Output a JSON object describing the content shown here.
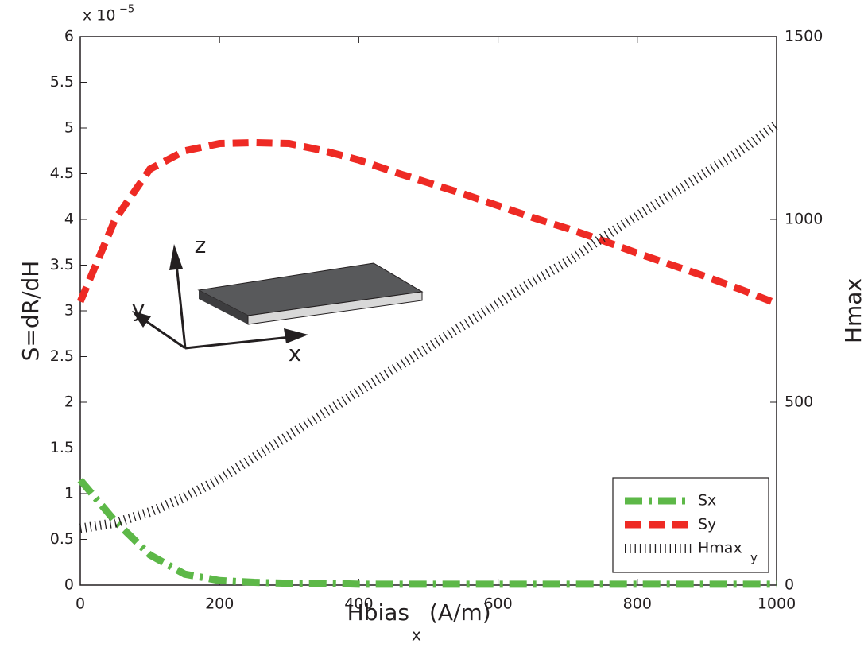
{
  "chart_data": {
    "type": "line",
    "xlabel": {
      "main": "Hbias",
      "subscript": "x",
      "unit": "(A/m)"
    },
    "ylabel": "S=dR/dH",
    "y2label": "Hmax",
    "y_multiplier": {
      "base": "x 10",
      "exponent": "−5"
    },
    "x": [
      0,
      50,
      100,
      150,
      200,
      250,
      300,
      350,
      400,
      450,
      500,
      550,
      600,
      650,
      700,
      750,
      800,
      850,
      900,
      950,
      1000
    ],
    "series": [
      {
        "name": "Sx",
        "color": "#5db848",
        "style": "dashdot",
        "axis": "y",
        "values": [
          1.15,
          0.7,
          0.33,
          0.12,
          0.05,
          0.03,
          0.02,
          0.02,
          0.01,
          0.01,
          0.01,
          0.01,
          0.01,
          0.01,
          0.01,
          0.01,
          0.01,
          0.01,
          0.01,
          0.01,
          0.01
        ]
      },
      {
        "name": "Sy",
        "color": "#ee2a24",
        "style": "dashed",
        "axis": "y",
        "values": [
          3.1,
          4.0,
          4.55,
          4.75,
          4.83,
          4.84,
          4.83,
          4.75,
          4.65,
          4.52,
          4.4,
          4.28,
          4.15,
          4.02,
          3.9,
          3.77,
          3.63,
          3.5,
          3.37,
          3.23,
          3.08
        ]
      },
      {
        "name": "Hmax",
        "name_subscript": "y",
        "color": "#231f20",
        "style": "dotted",
        "axis": "y2",
        "values": [
          155,
          170,
          200,
          240,
          290,
          350,
          410,
          470,
          530,
          590,
          650,
          710,
          770,
          830,
          885,
          950,
          1010,
          1070,
          1130,
          1190,
          1260
        ]
      }
    ],
    "xlim": [
      0,
      1000
    ],
    "xticks": [
      0,
      200,
      400,
      600,
      800,
      1000
    ],
    "ylim": [
      0,
      6
    ],
    "yticks": [
      0,
      0.5,
      1,
      1.5,
      2,
      2.5,
      3,
      3.5,
      4,
      4.5,
      5,
      5.5,
      6
    ],
    "y2lim": [
      0,
      1500
    ],
    "y2ticks": [
      0,
      500,
      1000,
      1500
    ],
    "legend": "lower right",
    "grid": false,
    "inset": {
      "axis_labels": [
        "z",
        "y",
        "x"
      ]
    }
  }
}
